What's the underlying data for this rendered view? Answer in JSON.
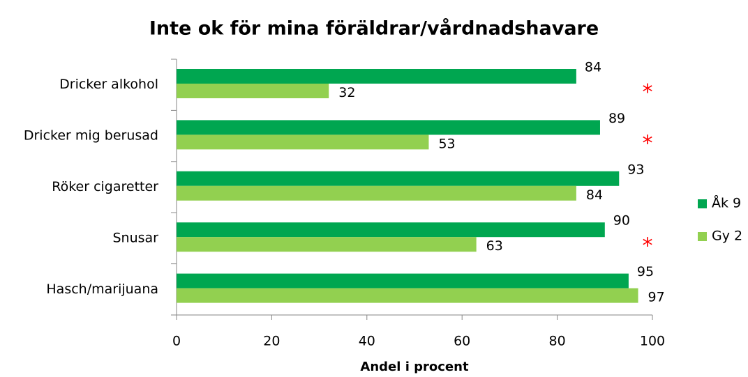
{
  "chart_data": {
    "type": "bar",
    "orientation": "horizontal",
    "title": "Inte ok för mina föräldrar/vårdnadshavare",
    "x_label": "Andel i procent",
    "categories": [
      "Dricker alkohol",
      "Dricker mig berusad",
      "Röker cigaretter",
      "Snusar",
      "Hasch/marijuana"
    ],
    "series": [
      {
        "name": "Åk 9",
        "color": "#00a650",
        "values": [
          84,
          89,
          93,
          90,
          95
        ]
      },
      {
        "name": "Gy 2",
        "color": "#92d050",
        "values": [
          32,
          53,
          84,
          63,
          97
        ]
      }
    ],
    "xlim": [
      0,
      100
    ],
    "xticks": [
      0,
      20,
      40,
      60,
      80,
      100
    ],
    "annotations": [
      {
        "label": "*",
        "color": "#ff0000",
        "category": "Dricker alkohol"
      },
      {
        "label": "*",
        "color": "#ff0000",
        "category": "Dricker mig berusad"
      },
      {
        "label": "*",
        "color": "#ff0000",
        "category": "Snusar"
      }
    ],
    "legend": "right",
    "grid": false
  }
}
